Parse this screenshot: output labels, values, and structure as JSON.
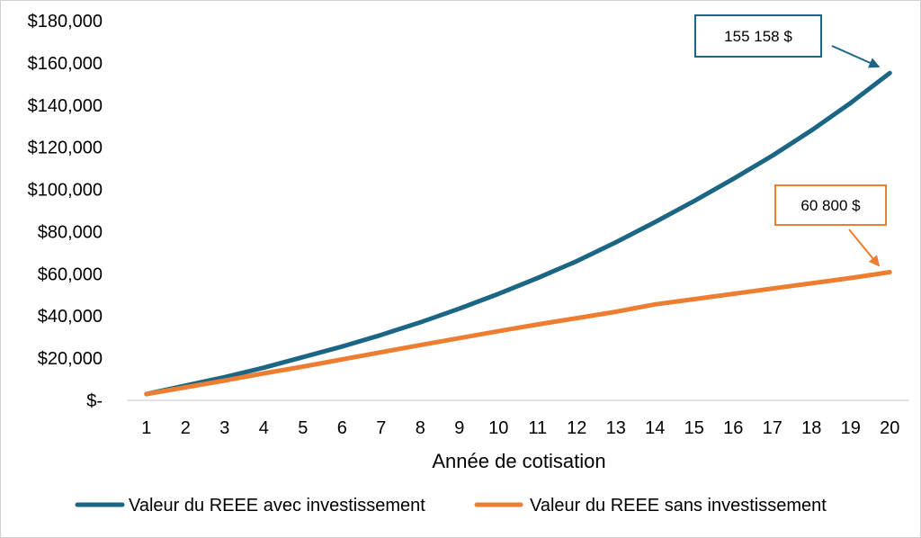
{
  "chart_data": {
    "type": "line",
    "title": "",
    "xlabel": "Année de cotisation",
    "ylabel": "",
    "x": [
      1,
      2,
      3,
      4,
      5,
      6,
      7,
      8,
      9,
      10,
      11,
      12,
      13,
      14,
      15,
      16,
      17,
      18,
      19,
      20
    ],
    "ylim": [
      0,
      180000
    ],
    "yticks": [
      0,
      20000,
      40000,
      60000,
      80000,
      100000,
      120000,
      140000,
      160000,
      180000
    ],
    "ytick_labels": [
      "$-",
      "$20,000",
      "$40,000",
      "$60,000",
      "$80,000",
      "$100,000",
      "$120,000",
      "$140,000",
      "$160,000",
      "$180,000"
    ],
    "grid": false,
    "legend_position": "bottom",
    "series": [
      {
        "name": "Valeur du REEE avec investissement",
        "color": "#1b6585",
        "values": [
          3000,
          7000,
          11000,
          15500,
          20500,
          25500,
          31000,
          37000,
          43500,
          50500,
          58000,
          66000,
          75000,
          84500,
          94500,
          105000,
          116000,
          128000,
          141000,
          155158
        ]
      },
      {
        "name": "Valeur du REEE sans investissement",
        "color": "#ed7d31",
        "values": [
          3000,
          6200,
          9400,
          12800,
          16000,
          19400,
          22800,
          26200,
          29500,
          32800,
          36000,
          39000,
          42000,
          45500,
          48000,
          50500,
          53000,
          55500,
          58000,
          60800
        ]
      }
    ],
    "annotations": [
      {
        "text": "155 158 $",
        "series": 0,
        "point_index": 19,
        "color": "#1b6585"
      },
      {
        "text": "60 800 $",
        "series": 1,
        "point_index": 19,
        "color": "#ed7d31"
      }
    ]
  }
}
